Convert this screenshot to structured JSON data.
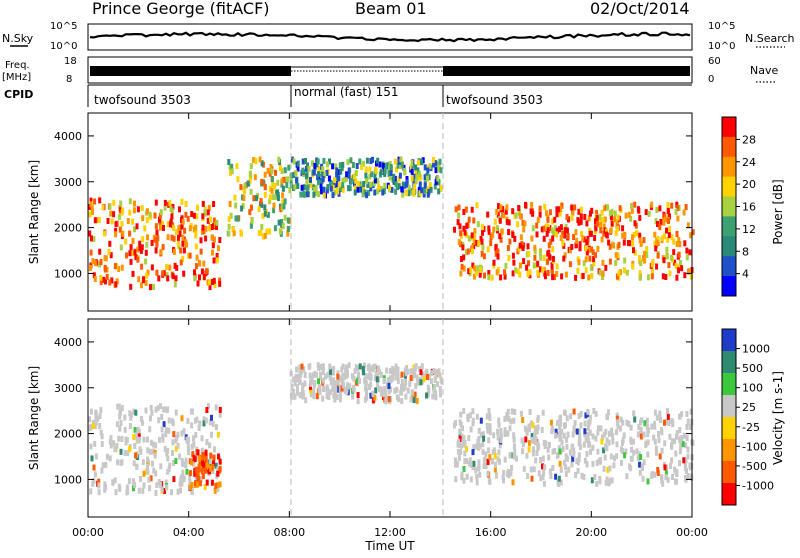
{
  "header": {
    "station": "Prince George (fitACF)",
    "beam": "Beam 01",
    "date": "02/Oct/2014"
  },
  "noise_panel": {
    "left_label": "N.Sky",
    "right_label": "N.Search",
    "left_ticks": [
      "10^5",
      "10^0"
    ],
    "right_ticks": [
      "10^5",
      "10^0"
    ]
  },
  "freq_panel": {
    "left_label_line1": "Freq.",
    "left_label_line2": "[MHz]",
    "left_ticks": [
      "18",
      "8"
    ],
    "right_ticks": [
      "60",
      "0"
    ],
    "right_label": "Nave"
  },
  "cpid_panel": {
    "label": "CPID",
    "segments": [
      {
        "name": "twofsound 3503",
        "start_h": 0,
        "end_h": 8
      },
      {
        "name": "normal (fast) 151",
        "start_h": 8,
        "end_h": 14
      },
      {
        "name": "twofsound 3503",
        "start_h": 14,
        "end_h": 24
      }
    ]
  },
  "power_colorbar": {
    "label": "Power [dB]",
    "ticks": [
      "28",
      "24",
      "20",
      "16",
      "12",
      "8",
      "4"
    ],
    "colors": [
      "#ff0000",
      "#ff5a00",
      "#ff9600",
      "#ffd200",
      "#a8d040",
      "#3ca070",
      "#2a8a78",
      "#1e50c8",
      "#0000ff"
    ]
  },
  "velocity_colorbar": {
    "label": "Velocity [m s-1]",
    "ticks": [
      "1000",
      "500",
      "100",
      "25",
      "-25",
      "-100",
      "-500",
      "-1000"
    ],
    "colors": [
      "#1e3cc8",
      "#2e8a70",
      "#3cc83c",
      "#c8c8c8",
      "#ffd200",
      "#ff9600",
      "#ff5a00",
      "#ff0000"
    ]
  },
  "chart_data": [
    {
      "type": "heatmap",
      "title": "",
      "ylabel": "Slant Range [km]",
      "xlabel": "",
      "ylim": [
        180,
        4500
      ],
      "y_ticks": [
        1000,
        2000,
        3000,
        4000
      ],
      "x_range_hours": [
        0,
        24
      ],
      "quantity": "Power [dB]",
      "echo_regions": [
        {
          "start_h": 0,
          "end_h": 5.2,
          "min_km": 700,
          "max_km": 2600,
          "level": "high"
        },
        {
          "start_h": 5.5,
          "end_h": 8.0,
          "min_km": 1800,
          "max_km": 3500,
          "level": "medium"
        },
        {
          "start_h": 8.0,
          "end_h": 14.0,
          "min_km": 2700,
          "max_km": 3500,
          "level": "low"
        },
        {
          "start_h": 14.5,
          "end_h": 24.0,
          "min_km": 900,
          "max_km": 2500,
          "level": "high"
        }
      ]
    },
    {
      "type": "heatmap",
      "title": "",
      "ylabel": "Slant Range [km]",
      "xlabel": "Time UT",
      "ylim": [
        180,
        4500
      ],
      "y_ticks": [
        1000,
        2000,
        3000,
        4000
      ],
      "x_ticks": [
        "00:00",
        "04:00",
        "08:00",
        "12:00",
        "16:00",
        "20:00",
        "00:00"
      ],
      "x_range_hours": [
        0,
        24
      ],
      "quantity": "Velocity [m s-1]",
      "echo_regions": [
        {
          "start_h": 0,
          "end_h": 5.2,
          "min_km": 700,
          "max_km": 2600,
          "level": "near-zero"
        },
        {
          "start_h": 4.0,
          "end_h": 5.2,
          "min_km": 800,
          "max_km": 1600,
          "level": "negative"
        },
        {
          "start_h": 8.0,
          "end_h": 14.0,
          "min_km": 2700,
          "max_km": 3500,
          "level": "near-zero"
        },
        {
          "start_h": 14.5,
          "end_h": 24.0,
          "min_km": 900,
          "max_km": 2500,
          "level": "near-zero"
        }
      ]
    }
  ]
}
